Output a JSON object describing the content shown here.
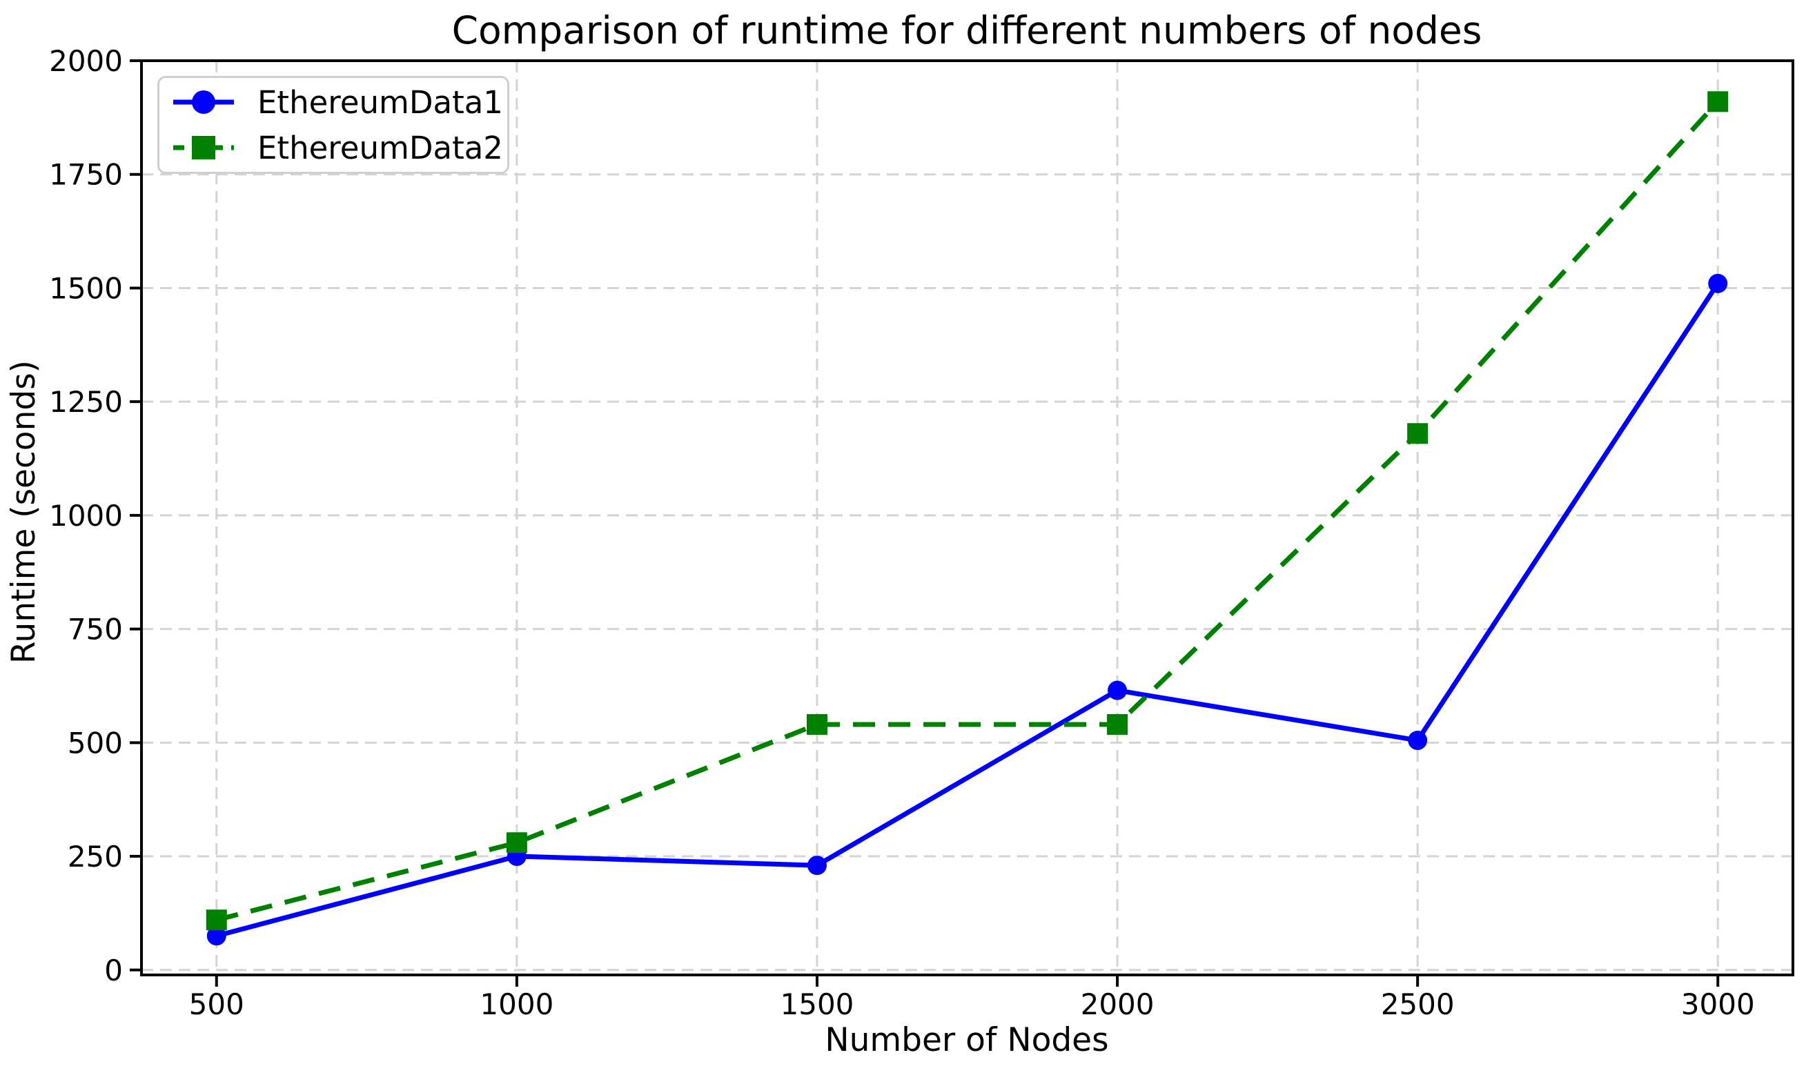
{
  "chart_data": {
    "type": "line",
    "title": "Comparison of runtime for different numbers of nodes",
    "xlabel": "Number of Nodes",
    "ylabel": "Runtime (seconds)",
    "x": [
      500,
      1000,
      1500,
      2000,
      2500,
      3000
    ],
    "series": [
      {
        "name": "EthereumData1",
        "values": [
          75,
          250,
          230,
          615,
          505,
          1510
        ],
        "color": "#0000ff",
        "line_style": "solid",
        "marker": "circle"
      },
      {
        "name": "EthereumData2",
        "values": [
          110,
          280,
          540,
          540,
          1180,
          1910
        ],
        "color": "#008000",
        "line_style": "dashed",
        "marker": "square"
      }
    ],
    "xticks": [
      500,
      1000,
      1500,
      2000,
      2500,
      3000
    ],
    "yticks": [
      0,
      250,
      500,
      750,
      1000,
      1250,
      1500,
      1750,
      2000
    ],
    "xlim": [
      375,
      3125
    ],
    "ylim": [
      -11,
      2000
    ],
    "grid": true,
    "grid_color": "#d4d4d4",
    "axis_color": "#000000",
    "background": "#ffffff",
    "legend_position": "upper-left"
  }
}
